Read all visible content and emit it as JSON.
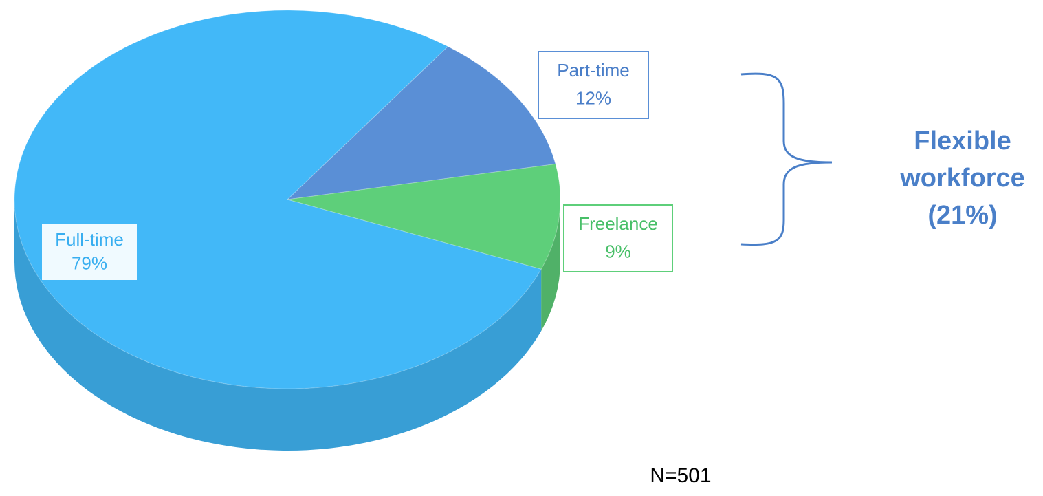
{
  "chart_data": {
    "type": "pie",
    "categories": [
      "Full-time",
      "Part-time",
      "Freelance"
    ],
    "values": [
      79,
      12,
      9
    ],
    "value_labels": [
      "79%",
      "12%",
      "9%"
    ],
    "colors": [
      "#42b8f8",
      "#5a8fd6",
      "#5ecf7a"
    ],
    "annotation": "Flexible workforce (21%)",
    "note": "N=501"
  }
}
